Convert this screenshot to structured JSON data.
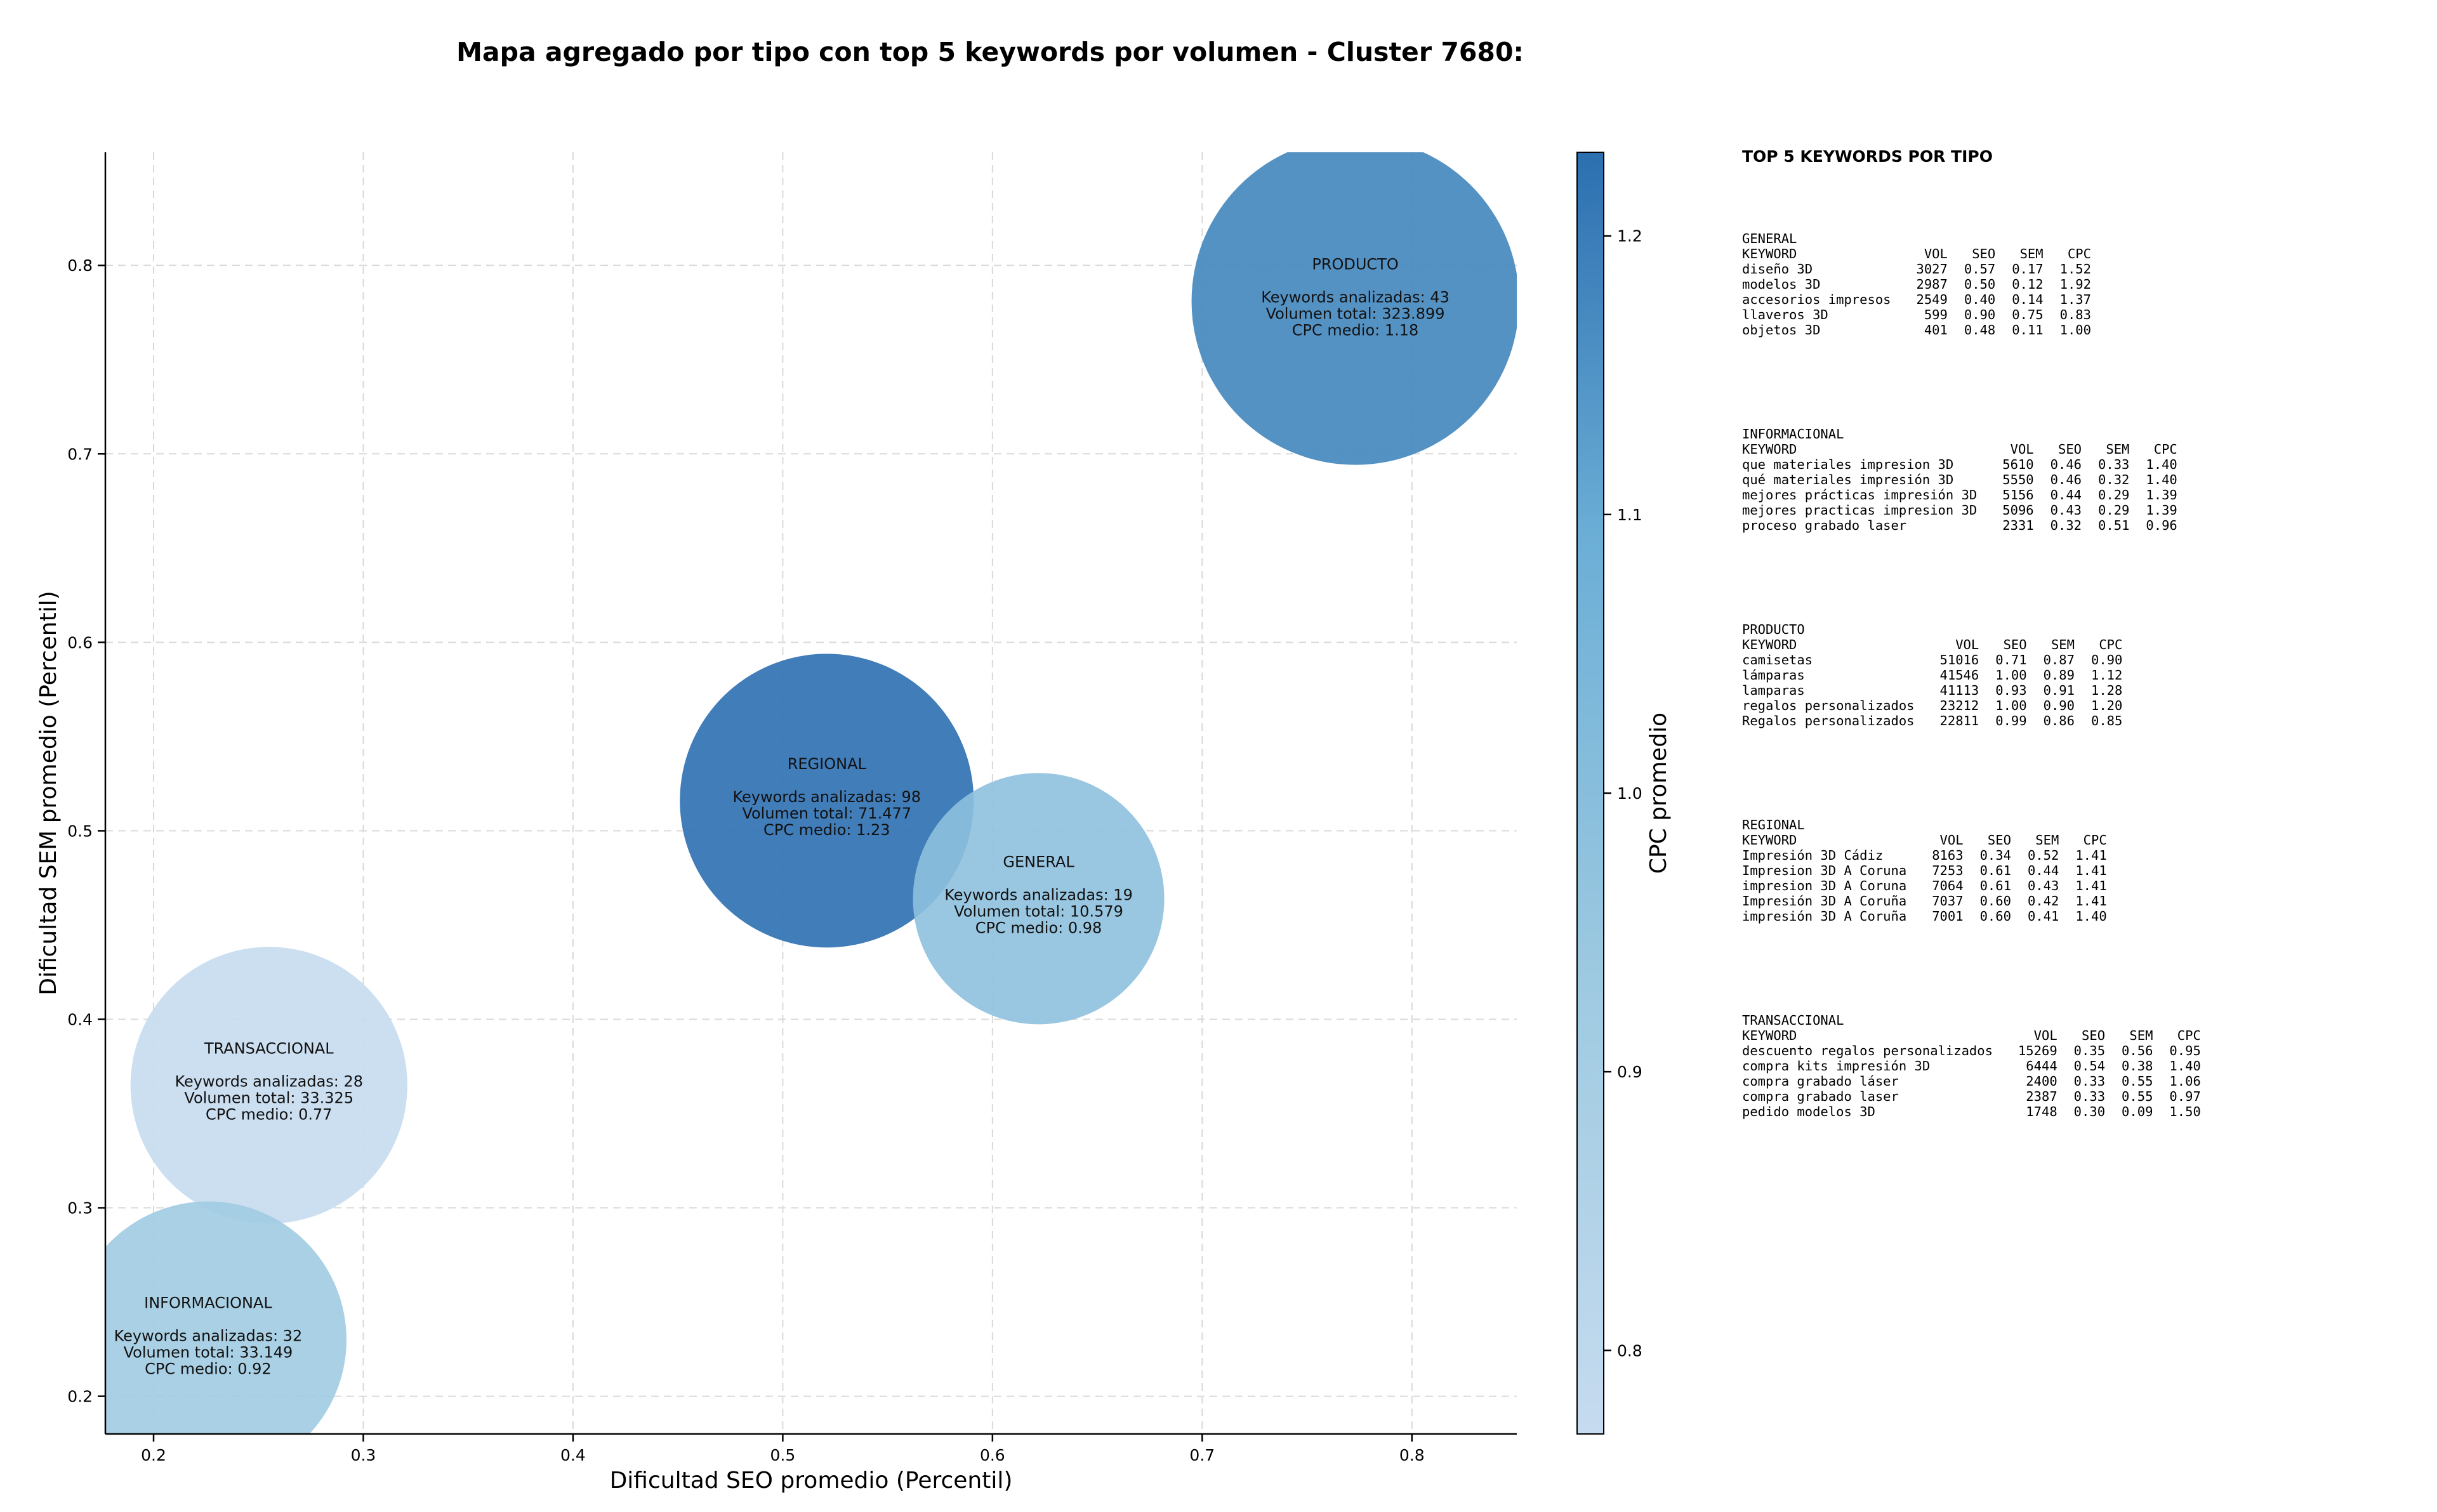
{
  "chart_data": {
    "type": "scatter",
    "title": "Mapa agregado por tipo con top 5 keywords por volumen - Cluster 7680:",
    "xlabel": "Dificultad SEO promedio (Percentil)",
    "ylabel": "Dificultad SEM promedio (Percentil)",
    "colorbar_label": "CPC promedio",
    "xlim": [
      0.177,
      0.85
    ],
    "ylim": [
      0.18,
      0.86
    ],
    "xticks": [
      "0.2",
      "0.3",
      "0.4",
      "0.5",
      "0.6",
      "0.7",
      "0.8"
    ],
    "yticks": [
      "0.2",
      "0.3",
      "0.4",
      "0.5",
      "0.6",
      "0.7",
      "0.8"
    ],
    "colorbar_ticks": [
      "0.8",
      "0.9",
      "1.0",
      "1.1",
      "1.2"
    ],
    "colorbar_range": [
      0.77,
      1.23
    ],
    "grid": true,
    "points": [
      {
        "name": "PRODUCTO",
        "x": 0.773,
        "y": 0.781,
        "cpc": 1.18,
        "keywords": 43,
        "volume": 323899,
        "line_name": "PRODUCTO",
        "line_kw": "Keywords analizadas: 43",
        "line_vol": "Volumen total: 323.899",
        "line_cpc": "CPC medio: 1.18"
      },
      {
        "name": "REGIONAL",
        "x": 0.521,
        "y": 0.516,
        "cpc": 1.23,
        "keywords": 98,
        "volume": 71477,
        "line_name": "REGIONAL",
        "line_kw": "Keywords analizadas: 98",
        "line_vol": "Volumen total: 71.477",
        "line_cpc": "CPC medio: 1.23"
      },
      {
        "name": "GENERAL",
        "x": 0.622,
        "y": 0.464,
        "cpc": 0.98,
        "keywords": 19,
        "volume": 10579,
        "line_name": "GENERAL",
        "line_kw": "Keywords analizadas: 19",
        "line_vol": "Volumen total: 10.579",
        "line_cpc": "CPC medio: 0.98"
      },
      {
        "name": "TRANSACCIONAL",
        "x": 0.255,
        "y": 0.365,
        "cpc": 0.77,
        "keywords": 28,
        "volume": 33325,
        "line_name": "TRANSACCIONAL",
        "line_kw": "Keywords analizadas: 28",
        "line_vol": "Volumen total: 33.325",
        "line_cpc": "CPC medio: 0.77"
      },
      {
        "name": "INFORMACIONAL",
        "x": 0.226,
        "y": 0.23,
        "cpc": 0.92,
        "keywords": 32,
        "volume": 33149,
        "line_name": "INFORMACIONAL",
        "line_kw": "Keywords analizadas: 32",
        "line_vol": "Volumen total: 33.149",
        "line_cpc": "CPC medio: 0.92"
      }
    ]
  },
  "side_panel": {
    "title": "TOP 5 KEYWORDS POR TIPO",
    "headers": [
      "KEYWORD",
      "VOL",
      "SEO",
      "SEM",
      "CPC"
    ],
    "groups": [
      {
        "name": "GENERAL",
        "rows": [
          [
            "diseño 3D",
            "3027",
            "0.57",
            "0.17",
            "1.52"
          ],
          [
            "modelos 3D",
            "2987",
            "0.50",
            "0.12",
            "1.92"
          ],
          [
            "accesorios impresos",
            "2549",
            "0.40",
            "0.14",
            "1.37"
          ],
          [
            "llaveros 3D",
            "599",
            "0.90",
            "0.75",
            "0.83"
          ],
          [
            "objetos 3D",
            "401",
            "0.48",
            "0.11",
            "1.00"
          ]
        ]
      },
      {
        "name": "INFORMACIONAL",
        "rows": [
          [
            "que materiales impresion 3D",
            "5610",
            "0.46",
            "0.33",
            "1.40"
          ],
          [
            "qué materiales impresión 3D",
            "5550",
            "0.46",
            "0.32",
            "1.40"
          ],
          [
            "mejores prácticas impresión 3D",
            "5156",
            "0.44",
            "0.29",
            "1.39"
          ],
          [
            "mejores practicas impresion 3D",
            "5096",
            "0.43",
            "0.29",
            "1.39"
          ],
          [
            "proceso grabado laser",
            "2331",
            "0.32",
            "0.51",
            "0.96"
          ]
        ]
      },
      {
        "name": "PRODUCTO",
        "rows": [
          [
            "camisetas",
            "51016",
            "0.71",
            "0.87",
            "0.90"
          ],
          [
            "lámparas",
            "41546",
            "1.00",
            "0.89",
            "1.12"
          ],
          [
            "lamparas",
            "41113",
            "0.93",
            "0.91",
            "1.28"
          ],
          [
            "regalos personalizados",
            "23212",
            "1.00",
            "0.90",
            "1.20"
          ],
          [
            "Regalos personalizados",
            "22811",
            "0.99",
            "0.86",
            "0.85"
          ]
        ]
      },
      {
        "name": "REGIONAL",
        "rows": [
          [
            "Impresión 3D Cádiz",
            "8163",
            "0.34",
            "0.52",
            "1.41"
          ],
          [
            "Impresion 3D A Coruna",
            "7253",
            "0.61",
            "0.44",
            "1.41"
          ],
          [
            "impresion 3D A Coruna",
            "7064",
            "0.61",
            "0.43",
            "1.41"
          ],
          [
            "Impresión 3D A Coruña",
            "7037",
            "0.60",
            "0.42",
            "1.41"
          ],
          [
            "impresión 3D A Coruña",
            "7001",
            "0.60",
            "0.41",
            "1.40"
          ]
        ]
      },
      {
        "name": "TRANSACCIONAL",
        "rows": [
          [
            "descuento regalos personalizados",
            "15269",
            "0.35",
            "0.56",
            "0.95"
          ],
          [
            "compra kits impresión 3D",
            "6444",
            "0.54",
            "0.38",
            "1.40"
          ],
          [
            "compra grabado láser",
            "2400",
            "0.33",
            "0.55",
            "1.06"
          ],
          [
            "compra grabado laser",
            "2387",
            "0.33",
            "0.55",
            "0.97"
          ],
          [
            "pedido modelos 3D",
            "1748",
            "0.30",
            "0.09",
            "1.50"
          ]
        ]
      }
    ]
  }
}
